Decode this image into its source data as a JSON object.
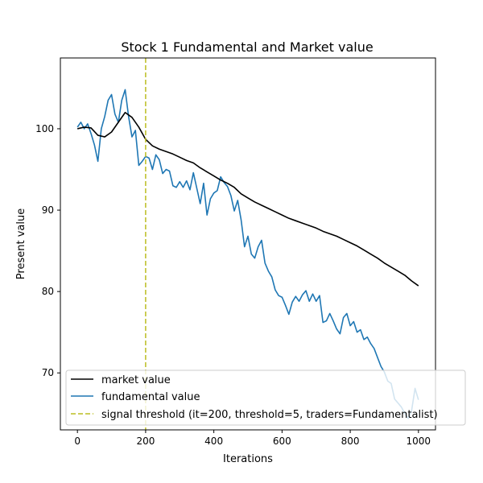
{
  "chart_data": {
    "type": "line",
    "title": "Stock 1 Fundamental and Market value",
    "xlabel": "Iterations",
    "ylabel": "Present value",
    "xlim": [
      -50,
      1050
    ],
    "ylim": [
      63,
      108.7
    ],
    "xticks": [
      0,
      200,
      400,
      600,
      800,
      1000
    ],
    "yticks": [
      70,
      80,
      90,
      100
    ],
    "grid": false,
    "legend_position": "lower-right",
    "series": [
      {
        "name": "market value",
        "color": "#000000",
        "x": [
          0,
          20,
          40,
          60,
          80,
          100,
          120,
          140,
          160,
          180,
          200,
          220,
          240,
          260,
          280,
          300,
          320,
          340,
          360,
          380,
          400,
          420,
          440,
          460,
          480,
          500,
          520,
          540,
          560,
          580,
          600,
          620,
          640,
          660,
          680,
          700,
          720,
          740,
          760,
          780,
          800,
          820,
          840,
          860,
          880,
          900,
          920,
          940,
          960,
          980,
          1000
        ],
        "y": [
          100.0,
          100.2,
          100.1,
          99.2,
          99.0,
          99.6,
          100.8,
          102.0,
          101.4,
          100.2,
          98.7,
          97.9,
          97.5,
          97.2,
          96.9,
          96.5,
          96.1,
          95.8,
          95.2,
          94.7,
          94.2,
          93.7,
          93.3,
          92.8,
          92.0,
          91.5,
          91.0,
          90.6,
          90.2,
          89.8,
          89.4,
          89.0,
          88.7,
          88.4,
          88.1,
          87.8,
          87.4,
          87.1,
          86.8,
          86.4,
          86.0,
          85.6,
          85.1,
          84.6,
          84.1,
          83.5,
          83.0,
          82.5,
          82.0,
          81.3,
          80.7
        ]
      },
      {
        "name": "fundamental value",
        "color": "#1f77b4",
        "x": [
          0,
          10,
          20,
          30,
          40,
          50,
          60,
          70,
          80,
          90,
          100,
          110,
          120,
          130,
          140,
          150,
          160,
          170,
          180,
          190,
          200,
          210,
          220,
          230,
          240,
          250,
          260,
          270,
          280,
          290,
          300,
          310,
          320,
          330,
          340,
          350,
          360,
          370,
          380,
          390,
          400,
          410,
          420,
          430,
          440,
          450,
          460,
          470,
          480,
          490,
          500,
          510,
          520,
          530,
          540,
          550,
          560,
          570,
          580,
          590,
          600,
          610,
          620,
          630,
          640,
          650,
          660,
          670,
          680,
          690,
          700,
          710,
          720,
          730,
          740,
          750,
          760,
          770,
          780,
          790,
          800,
          810,
          820,
          830,
          840,
          850,
          860,
          870,
          880,
          890,
          900,
          910,
          920,
          930,
          940,
          950,
          960,
          970,
          980,
          990,
          1000
        ],
        "y": [
          100.2,
          100.8,
          100.0,
          100.6,
          99.4,
          98.0,
          96.0,
          100.0,
          101.5,
          103.5,
          104.2,
          101.8,
          100.8,
          103.5,
          104.8,
          101.5,
          99.0,
          99.8,
          95.5,
          96.0,
          96.6,
          96.4,
          95.0,
          96.8,
          96.2,
          94.5,
          95.0,
          94.8,
          93.0,
          92.8,
          93.5,
          92.8,
          93.6,
          92.5,
          94.6,
          92.7,
          90.8,
          93.3,
          89.4,
          91.4,
          92.1,
          92.4,
          94.1,
          93.4,
          92.9,
          91.8,
          89.9,
          91.2,
          88.8,
          85.5,
          86.8,
          84.6,
          84.1,
          85.5,
          86.3,
          83.5,
          82.5,
          81.8,
          80.2,
          79.5,
          79.3,
          78.3,
          77.2,
          78.7,
          79.4,
          78.8,
          79.6,
          80.1,
          78.8,
          79.7,
          78.8,
          79.5,
          76.2,
          76.4,
          77.3,
          76.4,
          75.4,
          74.8,
          76.8,
          77.3,
          75.8,
          76.3,
          75.0,
          75.3,
          74.1,
          74.4,
          73.6,
          73.0,
          71.9,
          70.8,
          70.1,
          69.0,
          68.7,
          66.8,
          66.3,
          65.8,
          65.0,
          64.4,
          65.4,
          68.1,
          66.7
        ]
      }
    ],
    "threshold": {
      "name": "signal threshold (it=200, threshold=5, traders=Fundamentalist)",
      "x": 200,
      "color": "#bcbd22",
      "style": "dashed"
    }
  }
}
